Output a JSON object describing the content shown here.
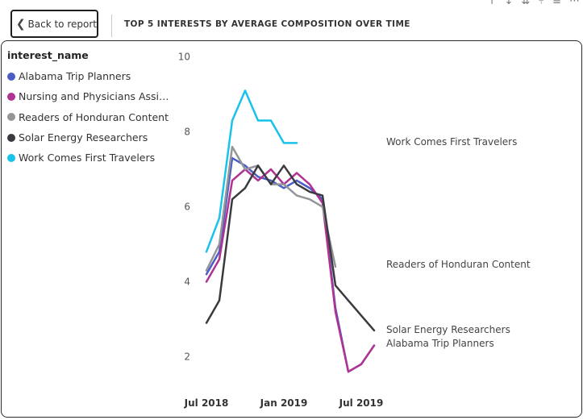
{
  "header": {
    "back_label": "Back to report",
    "title": "TOP 5 INTERESTS BY AVERAGE COMPOSITION OVER TIME"
  },
  "toolbar": {
    "icons": [
      "arrow-up-icon",
      "arrow-down-icon",
      "double-arrow-down-icon",
      "fork-icon",
      "filter-icon",
      "more-options-icon"
    ],
    "glyphs": [
      "↑",
      "↓",
      "⇊",
      "⑂",
      "≡",
      "⋯"
    ]
  },
  "legend": {
    "title": "interest_name"
  },
  "chart_data": {
    "type": "line",
    "x": [
      "2018-07",
      "2018-08",
      "2018-09",
      "2018-10",
      "2018-11",
      "2018-12",
      "2019-01",
      "2019-02",
      "2019-03",
      "2019-04",
      "2019-05",
      "2019-06",
      "2019-07",
      "2019-08"
    ],
    "ylim": [
      1,
      10
    ],
    "y_ticks": [
      2,
      4,
      6,
      8,
      10
    ],
    "x_tick_labels": [
      {
        "x": "2018-07",
        "label": "Jul 2018"
      },
      {
        "x": "2019-01",
        "label": "Jan 2019"
      },
      {
        "x": "2019-07",
        "label": "Jul 2019"
      }
    ],
    "grid": false,
    "legend_position": "left",
    "series": [
      {
        "name": "Alabama Trip Planners",
        "legend_label": "Alabama Trip Planners",
        "end_label": "Alabama Trip Planners",
        "color": "#4a5cc6",
        "values": [
          4.2,
          4.8,
          7.3,
          7.1,
          6.8,
          6.7,
          6.5,
          6.7,
          6.5,
          6.2,
          3.3,
          1.6,
          1.8,
          2.3
        ]
      },
      {
        "name": "Nursing and Physicians Assistants",
        "legend_label": "Nursing and Physicians Assista...",
        "end_label": "",
        "color": "#b03291",
        "values": [
          4.0,
          4.6,
          6.7,
          7.0,
          6.7,
          7.0,
          6.6,
          6.9,
          6.6,
          6.1,
          3.2,
          1.6,
          1.8,
          2.3
        ]
      },
      {
        "name": "Readers of Honduran Content",
        "legend_label": "Readers of Honduran Content",
        "end_label": "Readers of Honduran Content",
        "color": "#939598",
        "values": [
          4.3,
          5.0,
          7.6,
          7.0,
          7.1,
          6.6,
          6.6,
          6.3,
          6.2,
          6.0,
          4.4,
          null,
          null,
          null
        ]
      },
      {
        "name": "Solar Energy Researchers",
        "legend_label": "Solar Energy Researchers",
        "end_label": "Solar Energy Researchers",
        "color": "#3b3a40",
        "values": [
          2.9,
          3.5,
          6.2,
          6.5,
          7.1,
          6.6,
          7.1,
          6.6,
          6.4,
          6.3,
          3.9,
          3.5,
          3.1,
          2.7
        ]
      },
      {
        "name": "Work Comes First Travelers",
        "legend_label": "Work Comes First Travelers",
        "end_label": "Work Comes First Travelers",
        "color": "#19c2ea",
        "values": [
          4.8,
          5.7,
          8.3,
          9.1,
          8.3,
          8.3,
          7.7,
          7.7,
          null,
          null,
          null,
          null,
          null,
          null
        ]
      }
    ]
  }
}
